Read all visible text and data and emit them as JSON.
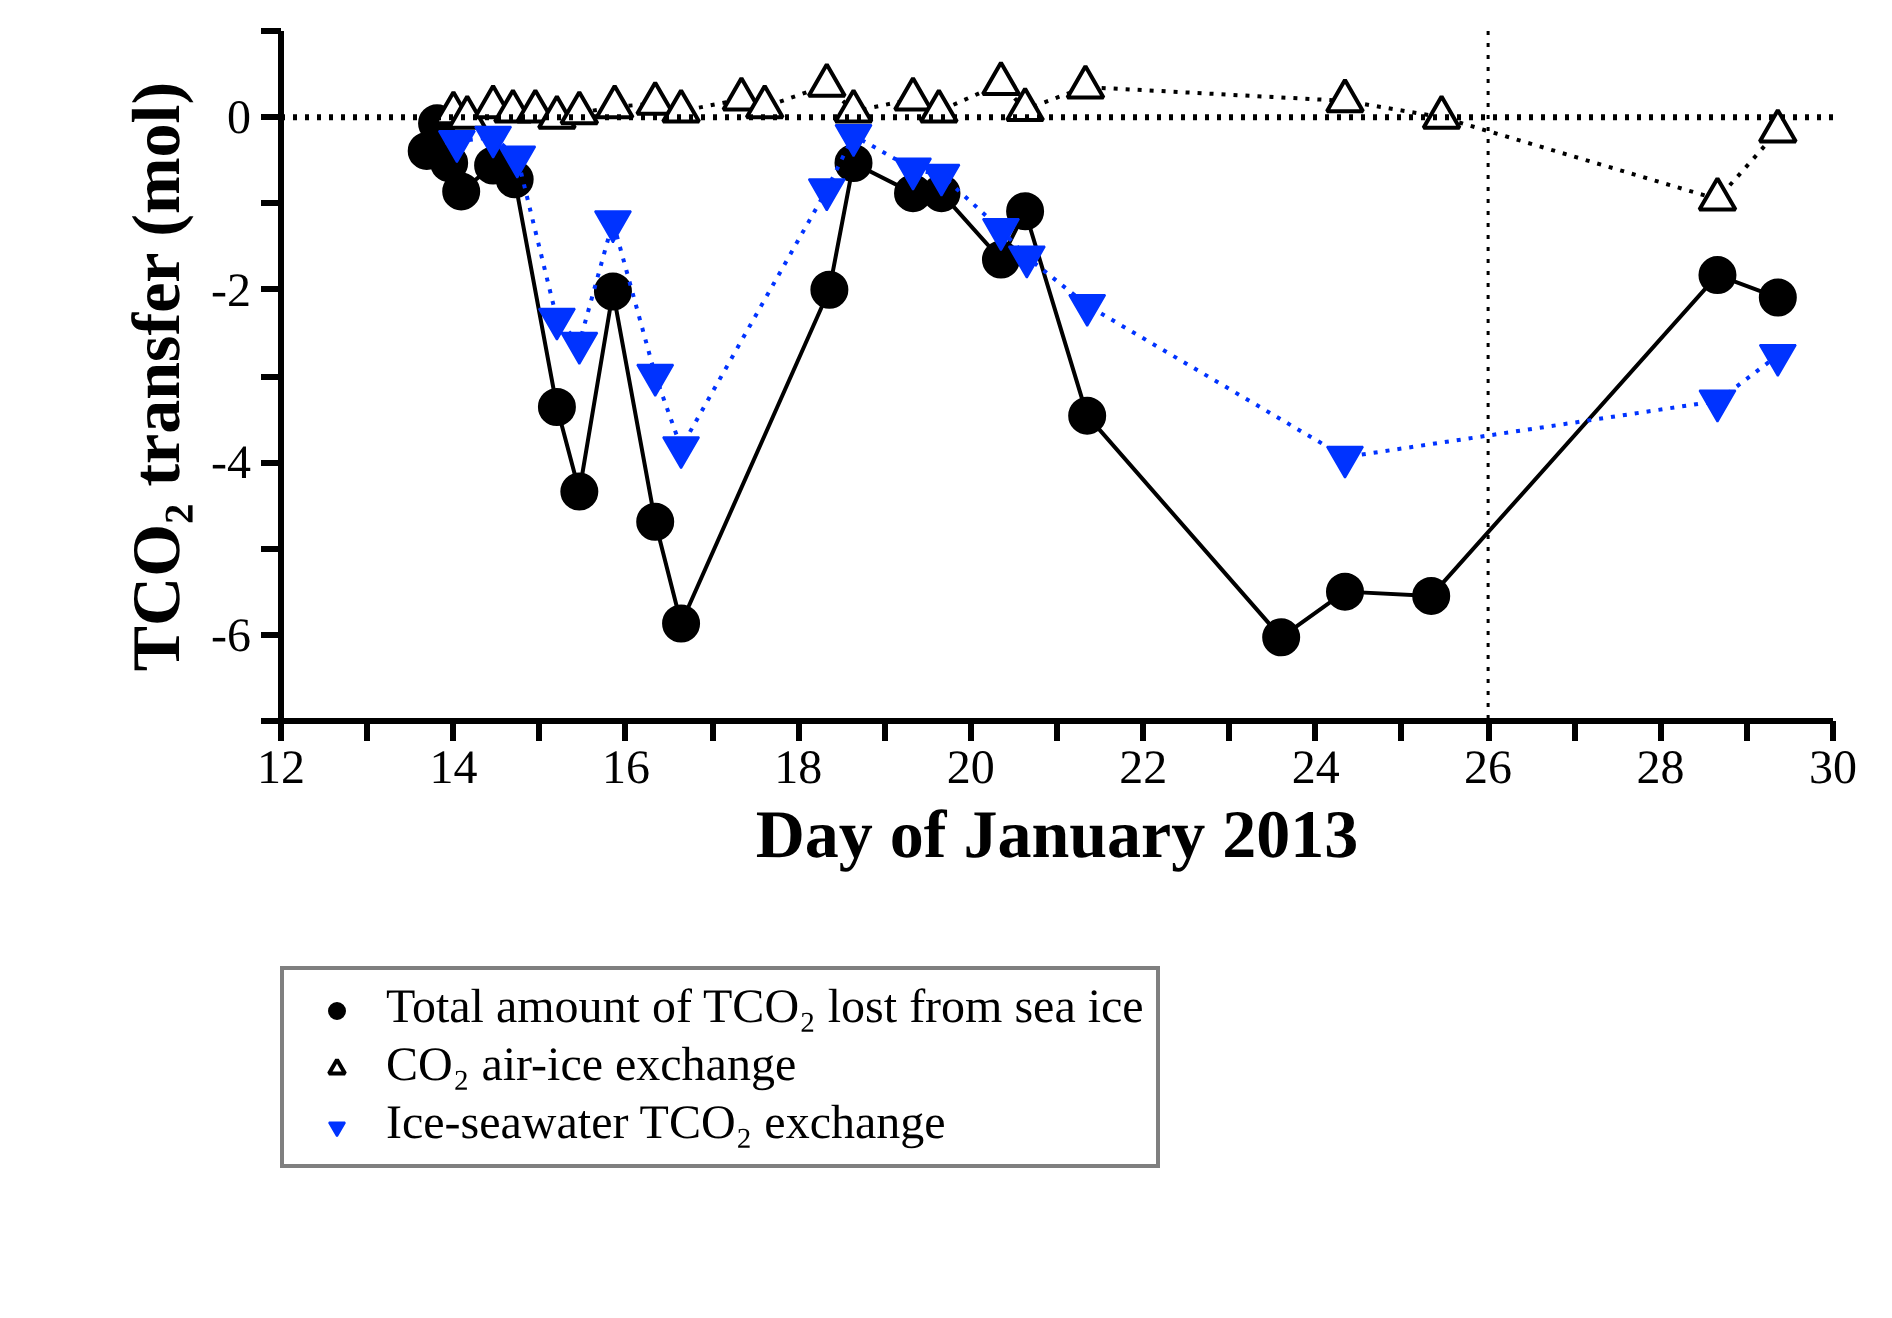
{
  "chart_data": {
    "type": "line",
    "xlabel": "Day of January 2013",
    "ylabel": "TCO₂ transfer (mol)",
    "xlim": [
      12,
      30
    ],
    "ylim": [
      -7,
      1
    ],
    "xticks": [
      12,
      {
        "value": 13,
        "label": null
      },
      14,
      {
        "value": 15,
        "label": null
      },
      16,
      {
        "value": 17,
        "label": null
      },
      18,
      {
        "value": 19,
        "label": null
      },
      20,
      {
        "value": 21,
        "label": null
      },
      22,
      {
        "value": 23,
        "label": null
      },
      24,
      {
        "value": 25,
        "label": null
      },
      26,
      {
        "value": 27,
        "label": null
      },
      28,
      {
        "value": 29,
        "label": null
      },
      30
    ],
    "yticks": [
      {
        "value": -7,
        "label": null
      },
      -6,
      {
        "value": -5,
        "label": null
      },
      -4,
      {
        "value": -3,
        "label": null
      },
      -2,
      {
        "value": -1,
        "label": null
      },
      0,
      {
        "value": 1,
        "label": null
      }
    ],
    "grid": false,
    "legend": "bottom",
    "ref_lines": [
      {
        "axis": "y",
        "value": 0,
        "color": "#000000",
        "line_style": "dotted"
      },
      {
        "axis": "x",
        "value": 26,
        "color": "#000000",
        "line_style": "dotted"
      }
    ],
    "series": [
      {
        "name": "Total amount of TCO₂ lost from sea ice",
        "color": "#000000",
        "marker": "circle",
        "line_style": "solid",
        "x": [
          13.69,
          13.81,
          13.95,
          14.09,
          14.46,
          14.71,
          15.2,
          15.46,
          15.85,
          16.34,
          16.64,
          18.36,
          18.64,
          19.33,
          19.66,
          20.35,
          20.63,
          21.35,
          23.6,
          24.34,
          25.34,
          28.66,
          29.36
        ],
        "values": [
          -0.39,
          -0.07,
          -0.53,
          -0.86,
          -0.56,
          -0.72,
          -3.36,
          -4.34,
          -2.02,
          -4.69,
          -5.87,
          -2.0,
          -0.53,
          -0.88,
          -0.88,
          -1.65,
          -1.09,
          -3.46,
          -6.03,
          -5.5,
          -5.55,
          -1.83,
          -2.09
        ]
      },
      {
        "name": "CO₂ air-ice exchange",
        "color": "#000000",
        "marker": "triangle",
        "line_style": "dotted",
        "x": [
          14.0,
          14.16,
          14.46,
          14.69,
          14.95,
          15.2,
          15.46,
          15.87,
          16.34,
          16.64,
          17.34,
          17.61,
          18.33,
          18.64,
          19.33,
          19.63,
          20.35,
          20.63,
          21.33,
          24.34,
          25.46,
          28.66,
          29.36
        ],
        "values": [
          0.05,
          0.0,
          0.12,
          0.07,
          0.07,
          0.0,
          0.05,
          0.12,
          0.16,
          0.07,
          0.21,
          0.12,
          0.37,
          0.07,
          0.21,
          0.07,
          0.39,
          0.09,
          0.35,
          0.19,
          0.0,
          -0.95,
          -0.16
        ]
      },
      {
        "name": "Ice-seawater TCO₂ exchange",
        "color": "#0033ff",
        "marker": "triangle",
        "line_style": "dotted",
        "x": [
          14.04,
          14.46,
          14.74,
          15.2,
          15.46,
          15.85,
          16.34,
          16.64,
          18.33,
          18.64,
          19.33,
          19.66,
          20.35,
          20.65,
          21.35,
          24.34,
          28.66,
          29.36
        ],
        "values": [
          -0.28,
          -0.23,
          -0.46,
          -2.34,
          -2.62,
          -1.21,
          -2.99,
          -3.83,
          -0.84,
          -0.21,
          -0.6,
          -0.67,
          -1.3,
          -1.62,
          -2.18,
          -3.94,
          -3.29,
          -2.76
        ]
      }
    ]
  }
}
